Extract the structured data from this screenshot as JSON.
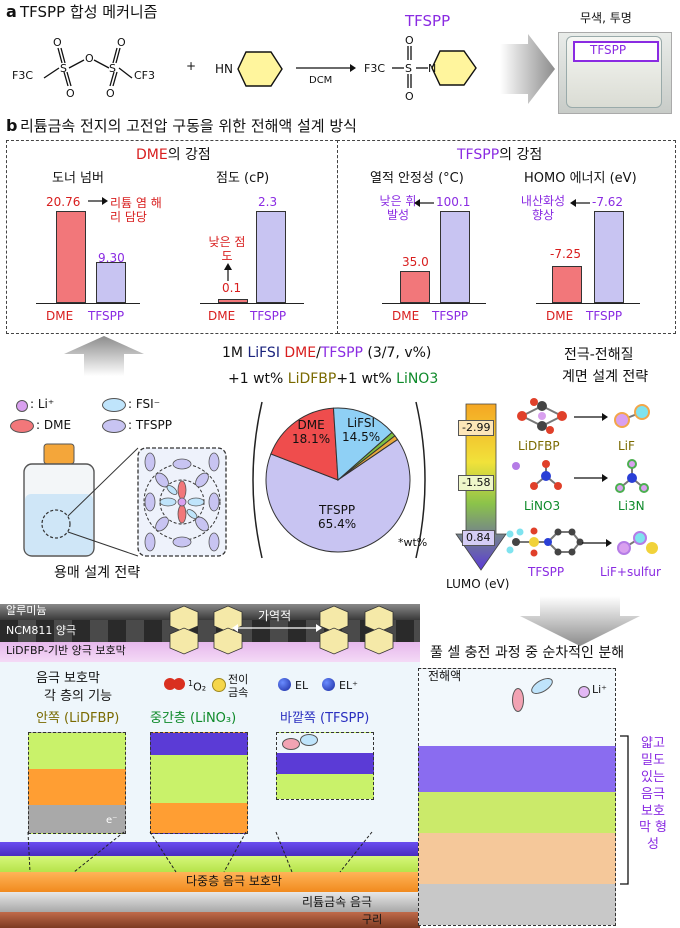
{
  "section_a": {
    "letter": "a",
    "title": "TFSPP 합성 메커니즘",
    "product_label": "TFSPP",
    "reactant_plus": "+",
    "reagent": "DCM",
    "reactant1_left": "F3C",
    "reactant1_right": "CF3",
    "amine_label": "HN",
    "product_formula": "F3C",
    "vial_label": "무색, 투명",
    "vial_text": "TFSPP"
  },
  "section_b": {
    "letter": "b",
    "title": "리튬금속 전지의 고전압 구동을 위한 전해액 설계 방식"
  },
  "dme_strength": {
    "title_colored": "DME",
    "title_rest": "의 강점",
    "donor": {
      "label": "도너 넘버",
      "dme_value": "20.76",
      "tfspp_value": "9.30",
      "note": "리튬 염 해리 담당"
    },
    "viscosity": {
      "label": "점도 (cP)",
      "dme_value": "0.1",
      "tfspp_value": "2.3",
      "note": "낮은 점도"
    },
    "x_labels": [
      "DME",
      "TFSPP"
    ]
  },
  "tfspp_strength": {
    "title_colored": "TFSPP",
    "title_rest": "의 강점",
    "thermal": {
      "label": "열적 안정성 (°C)",
      "dme_value": "35.0",
      "tfspp_value": "100.1",
      "note": "낮은 휘발성"
    },
    "homo": {
      "label": "HOMO 에너지 (eV)",
      "dme_value": "-7.25",
      "tfspp_value": "-7.62",
      "note": "내산화성 향상"
    },
    "x_labels": [
      "DME",
      "TFSPP"
    ]
  },
  "chart_data": [
    {
      "type": "bar",
      "title": "도너 넘버",
      "categories": [
        "DME",
        "TFSPP"
      ],
      "values": [
        20.76,
        9.3
      ]
    },
    {
      "type": "bar",
      "title": "점도 (cP)",
      "categories": [
        "DME",
        "TFSPP"
      ],
      "values": [
        0.1,
        2.3
      ]
    },
    {
      "type": "bar",
      "title": "열적 안정성 (°C)",
      "categories": [
        "DME",
        "TFSPP"
      ],
      "values": [
        35.0,
        100.1
      ]
    },
    {
      "type": "bar",
      "title": "HOMO 에너지 (eV)",
      "categories": [
        "DME",
        "TFSPP"
      ],
      "values": [
        -7.25,
        -7.62
      ]
    },
    {
      "type": "pie",
      "categories": [
        "TFSPP",
        "DME",
        "LiFSI",
        "LiDFBP",
        "LiNO3"
      ],
      "values": [
        65.4,
        18.1,
        14.5,
        1.0,
        1.0
      ],
      "unit": "*wt%"
    }
  ],
  "electrolyte": {
    "line1_prefix": "1M ",
    "line1_lifsi": "LiFSI",
    "line1_dme": "DME",
    "line1_slash": "/",
    "line1_tfspp": "TFSPP",
    "line1_suffix": " (3/7, v%)",
    "line2_a": "+1 wt% ",
    "line2_lidfbp": "LiDFBP",
    "line2_b": "+1 wt% ",
    "line2_lino3": "LiNO3",
    "pie_labels": {
      "tfspp_name": "TFSPP",
      "tfspp_pct": "65.4%",
      "dme_name": "DME",
      "dme_pct": "18.1%",
      "lifsi_name": "LiFSI",
      "lifsi_pct": "14.5%"
    },
    "wt_note": "*wt%"
  },
  "legend": {
    "li": ": Li⁺",
    "fsi": ": FSI⁻",
    "dme": ": DME",
    "tfspp": ": TFSPP"
  },
  "solvent_design": "용매 설계 전략",
  "lumo": {
    "values": [
      "-2.99",
      "-1.58",
      "0.84"
    ],
    "axis_label": "LUMO (eV)"
  },
  "interface": {
    "title1": "전극-전해질",
    "title2": "계면 설계 전략",
    "rows": [
      {
        "left": "LiDFBP",
        "right": "LiF"
      },
      {
        "left": "LiNO3",
        "right": "Li3N"
      },
      {
        "left": "TFSPP",
        "right": "LiF+sulfur"
      }
    ]
  },
  "bottom": {
    "al": "알루미늄",
    "ncm": "NCM811 양극",
    "cathode_cei": "LiDFBP-기반 양극 보호막",
    "reversible": "가역적",
    "singlet": "O₂",
    "singlet_sup": "1",
    "tm": "전이 금속",
    "el": "EL",
    "el_plus": "EL⁺",
    "anode_sei_title1": "음극 보호막",
    "anode_sei_title2": "각 층의 기능",
    "inner": "안쪽 (LiDFBP)",
    "middle": "중간층 (LiNO₃)",
    "outer": "바깥쪽 (TFSPP)",
    "e_minus": "e⁻",
    "multi_sei": "다중층 음극 보호막",
    "li_metal": "리튬금속 음극",
    "copper": "구리",
    "full_cell": "풀 셀 충전 과정 중 순차적인 분해",
    "electrolyte": "전해액",
    "li_plus": "Li⁺",
    "thin_sei": "얇고 밀도 있는 음극 보호막 형성"
  }
}
